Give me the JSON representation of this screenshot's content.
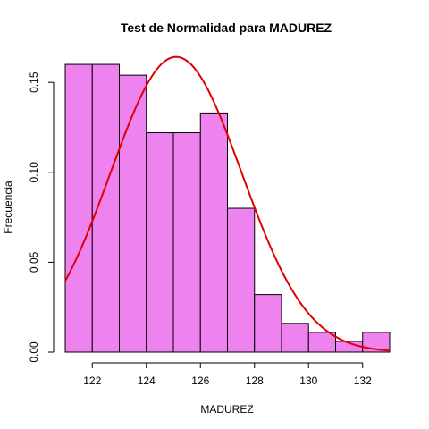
{
  "chart_data": {
    "type": "bar",
    "title": "Test de Normalidad para  MADUREZ",
    "xlabel": "MADUREZ",
    "ylabel": "Frecuencia",
    "xlim": [
      121,
      133
    ],
    "ylim": [
      0,
      0.165
    ],
    "x_ticks": [
      "122",
      "124",
      "126",
      "128",
      "130",
      "132"
    ],
    "y_ticks": [
      "0.00",
      "0.05",
      "0.10",
      "0.15"
    ],
    "bins": [
      {
        "start": 121,
        "end": 122,
        "density": 0.16
      },
      {
        "start": 122,
        "end": 123,
        "density": 0.16
      },
      {
        "start": 123,
        "end": 124,
        "density": 0.154
      },
      {
        "start": 124,
        "end": 125,
        "density": 0.122
      },
      {
        "start": 125,
        "end": 126,
        "density": 0.122
      },
      {
        "start": 126,
        "end": 127,
        "density": 0.133
      },
      {
        "start": 127,
        "end": 128,
        "density": 0.08
      },
      {
        "start": 128,
        "end": 129,
        "density": 0.032
      },
      {
        "start": 129,
        "end": 130,
        "density": 0.016
      },
      {
        "start": 130,
        "end": 131,
        "density": 0.011
      },
      {
        "start": 131,
        "end": 132,
        "density": 0.006
      },
      {
        "start": 132,
        "end": 133,
        "density": 0.011
      }
    ],
    "normal_curve": {
      "mean": 125.1,
      "sd": 2.43,
      "color": "#e00000"
    },
    "bar_fill": "#ee82ee",
    "bar_stroke": "#000000"
  }
}
